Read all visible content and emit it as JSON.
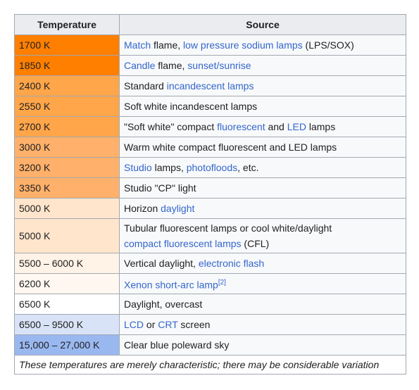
{
  "headers": {
    "temperature": "Temperature",
    "source": "Source"
  },
  "rows": [
    {
      "temp": "1700 K",
      "color": "#ff7f00",
      "parts": [
        {
          "t": "Match",
          "link": true
        },
        {
          "t": " flame, "
        },
        {
          "t": "low pressure sodium lamps",
          "link": true
        },
        {
          "t": " (LPS/SOX)"
        }
      ]
    },
    {
      "temp": "1850 K",
      "color": "#ff7f00",
      "parts": [
        {
          "t": "Candle",
          "link": true
        },
        {
          "t": " flame, "
        },
        {
          "t": "sunset/sunrise",
          "link": true
        }
      ]
    },
    {
      "temp": "2400 K",
      "color": "#ffa54a",
      "parts": [
        {
          "t": "Standard "
        },
        {
          "t": "incandescent lamps",
          "link": true
        }
      ]
    },
    {
      "temp": "2550 K",
      "color": "#ffa54a",
      "parts": [
        {
          "t": "Soft white incandescent lamps"
        }
      ]
    },
    {
      "temp": "2700 K",
      "color": "#ffa54a",
      "parts": [
        {
          "t": "\"Soft white\" compact "
        },
        {
          "t": "fluorescent",
          "link": true
        },
        {
          "t": " and "
        },
        {
          "t": "LED",
          "link": true
        },
        {
          "t": " lamps"
        }
      ]
    },
    {
      "temp": "3000 K",
      "color": "#ffb06a",
      "parts": [
        {
          "t": "Warm white compact fluorescent and LED lamps"
        }
      ]
    },
    {
      "temp": "3200 K",
      "color": "#ffb06a",
      "parts": [
        {
          "t": "Studio",
          "link": true
        },
        {
          "t": " lamps, "
        },
        {
          "t": "photofloods",
          "link": true
        },
        {
          "t": ", etc."
        }
      ]
    },
    {
      "temp": "3350 K",
      "color": "#ffb06a",
      "parts": [
        {
          "t": "Studio \"CP\" light"
        }
      ]
    },
    {
      "temp": "5000 K",
      "color": "#ffe5cc",
      "parts": [
        {
          "t": "Horizon "
        },
        {
          "t": "daylight",
          "link": true
        }
      ]
    },
    {
      "temp": "5000 K",
      "color": "#ffe5cc",
      "tall": true,
      "parts": [
        {
          "t": "Tubular fluorescent lamps or cool white/daylight"
        },
        {
          "br": true
        },
        {
          "t": "compact fluorescent lamps",
          "link": true
        },
        {
          "t": " (CFL)"
        }
      ]
    },
    {
      "temp": "5500 – 6000 K",
      "color": "#fff2e6",
      "parts": [
        {
          "t": "Vertical daylight, "
        },
        {
          "t": "electronic flash",
          "link": true
        }
      ]
    },
    {
      "temp": "6200 K",
      "color": "#fff7f0",
      "parts": [
        {
          "t": "Xenon short-arc lamp",
          "link": true
        },
        {
          "t": "[2]",
          "sup": true,
          "link": true
        }
      ]
    },
    {
      "temp": "6500 K",
      "color": "#ffffff",
      "parts": [
        {
          "t": "Daylight, overcast"
        }
      ]
    },
    {
      "temp": "6500 – 9500 K",
      "color": "#d9e3f7",
      "parts": [
        {
          "t": "LCD",
          "link": true
        },
        {
          "t": " or "
        },
        {
          "t": "CRT",
          "link": true
        },
        {
          "t": " screen"
        }
      ]
    },
    {
      "temp": "15,000 – 27,000 K",
      "color": "#9ab8f0",
      "parts": [
        {
          "t": "Clear blue poleward sky"
        }
      ]
    }
  ],
  "footnote": "These temperatures are merely characteristic; there may be considerable variation"
}
